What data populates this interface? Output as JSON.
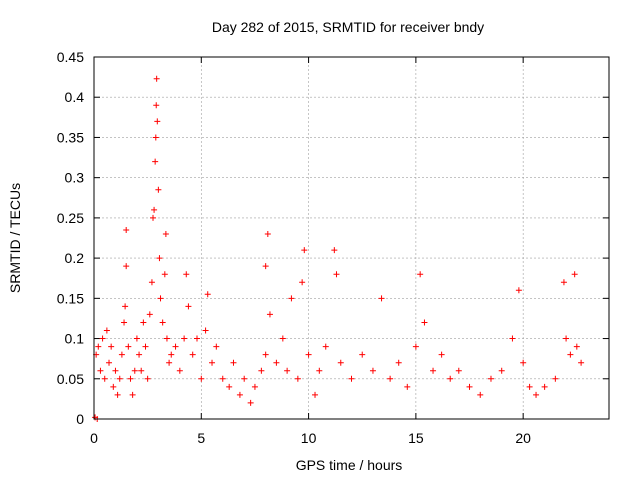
{
  "chart_data": {
    "type": "scatter",
    "title": "Day 282 of 2015, SRMTID for receiver bndy",
    "xlabel": "GPS time / hours",
    "ylabel": "SRMTID / TECUs",
    "xlim": [
      0,
      24
    ],
    "ylim": [
      0,
      0.45
    ],
    "xticks": [
      0,
      5,
      10,
      15,
      20
    ],
    "xtick_labels": [
      "0",
      "5",
      "10",
      "15",
      "20"
    ],
    "yticks": [
      0,
      0.05,
      0.1,
      0.15,
      0.2,
      0.25,
      0.3,
      0.35,
      0.4,
      0.45
    ],
    "ytick_labels": [
      "0",
      "0.05",
      "0.1",
      "0.15",
      "0.2",
      "0.25",
      "0.3",
      "0.35",
      "0.4",
      "0.45"
    ],
    "grid": true,
    "marker": "+",
    "color": "#ff0000",
    "series": [
      {
        "name": "SRMTID",
        "points": [
          [
            0.05,
            0.002
          ],
          [
            0.1,
            0.08
          ],
          [
            0.15,
            0.0
          ],
          [
            0.2,
            0.09
          ],
          [
            0.3,
            0.06
          ],
          [
            0.4,
            0.1
          ],
          [
            0.5,
            0.05
          ],
          [
            0.6,
            0.11
          ],
          [
            0.7,
            0.07
          ],
          [
            0.8,
            0.09
          ],
          [
            0.9,
            0.04
          ],
          [
            1.0,
            0.06
          ],
          [
            1.1,
            0.03
          ],
          [
            1.2,
            0.05
          ],
          [
            1.3,
            0.08
          ],
          [
            1.4,
            0.12
          ],
          [
            1.45,
            0.14
          ],
          [
            1.5,
            0.19
          ],
          [
            1.5,
            0.235
          ],
          [
            1.6,
            0.09
          ],
          [
            1.7,
            0.05
          ],
          [
            1.8,
            0.03
          ],
          [
            1.9,
            0.06
          ],
          [
            2.0,
            0.1
          ],
          [
            2.1,
            0.08
          ],
          [
            2.2,
            0.06
          ],
          [
            2.3,
            0.12
          ],
          [
            2.4,
            0.09
          ],
          [
            2.5,
            0.05
          ],
          [
            2.6,
            0.13
          ],
          [
            2.7,
            0.17
          ],
          [
            2.75,
            0.25
          ],
          [
            2.8,
            0.26
          ],
          [
            2.85,
            0.32
          ],
          [
            2.88,
            0.35
          ],
          [
            2.9,
            0.39
          ],
          [
            2.92,
            0.423
          ],
          [
            2.95,
            0.37
          ],
          [
            3.0,
            0.285
          ],
          [
            3.05,
            0.2
          ],
          [
            3.1,
            0.15
          ],
          [
            3.2,
            0.12
          ],
          [
            3.3,
            0.18
          ],
          [
            3.35,
            0.23
          ],
          [
            3.4,
            0.1
          ],
          [
            3.5,
            0.07
          ],
          [
            3.6,
            0.08
          ],
          [
            3.8,
            0.09
          ],
          [
            4.0,
            0.06
          ],
          [
            4.2,
            0.1
          ],
          [
            4.3,
            0.18
          ],
          [
            4.4,
            0.14
          ],
          [
            4.6,
            0.08
          ],
          [
            4.8,
            0.1
          ],
          [
            5.0,
            0.05
          ],
          [
            5.2,
            0.11
          ],
          [
            5.3,
            0.155
          ],
          [
            5.5,
            0.07
          ],
          [
            5.7,
            0.09
          ],
          [
            6.0,
            0.05
          ],
          [
            6.3,
            0.04
          ],
          [
            6.5,
            0.07
          ],
          [
            6.8,
            0.03
          ],
          [
            7.0,
            0.05
          ],
          [
            7.3,
            0.02
          ],
          [
            7.5,
            0.04
          ],
          [
            7.8,
            0.06
          ],
          [
            8.0,
            0.08
          ],
          [
            8.0,
            0.19
          ],
          [
            8.1,
            0.23
          ],
          [
            8.2,
            0.13
          ],
          [
            8.5,
            0.07
          ],
          [
            8.8,
            0.1
          ],
          [
            9.0,
            0.06
          ],
          [
            9.2,
            0.15
          ],
          [
            9.5,
            0.05
          ],
          [
            9.7,
            0.17
          ],
          [
            9.8,
            0.21
          ],
          [
            10.0,
            0.08
          ],
          [
            10.3,
            0.03
          ],
          [
            10.5,
            0.06
          ],
          [
            10.8,
            0.09
          ],
          [
            11.2,
            0.21
          ],
          [
            11.3,
            0.18
          ],
          [
            11.5,
            0.07
          ],
          [
            12.0,
            0.05
          ],
          [
            12.5,
            0.08
          ],
          [
            13.0,
            0.06
          ],
          [
            13.4,
            0.15
          ],
          [
            13.8,
            0.05
          ],
          [
            14.2,
            0.07
          ],
          [
            14.6,
            0.04
          ],
          [
            15.0,
            0.09
          ],
          [
            15.2,
            0.18
          ],
          [
            15.4,
            0.12
          ],
          [
            15.8,
            0.06
          ],
          [
            16.2,
            0.08
          ],
          [
            16.6,
            0.05
          ],
          [
            17.0,
            0.06
          ],
          [
            17.5,
            0.04
          ],
          [
            18.0,
            0.03
          ],
          [
            18.5,
            0.05
          ],
          [
            19.0,
            0.06
          ],
          [
            19.5,
            0.1
          ],
          [
            19.8,
            0.16
          ],
          [
            20.0,
            0.07
          ],
          [
            20.3,
            0.04
          ],
          [
            20.6,
            0.03
          ],
          [
            21.0,
            0.04
          ],
          [
            21.5,
            0.05
          ],
          [
            21.9,
            0.17
          ],
          [
            22.0,
            0.1
          ],
          [
            22.2,
            0.08
          ],
          [
            22.4,
            0.18
          ],
          [
            22.5,
            0.09
          ],
          [
            22.7,
            0.07
          ]
        ]
      }
    ]
  }
}
